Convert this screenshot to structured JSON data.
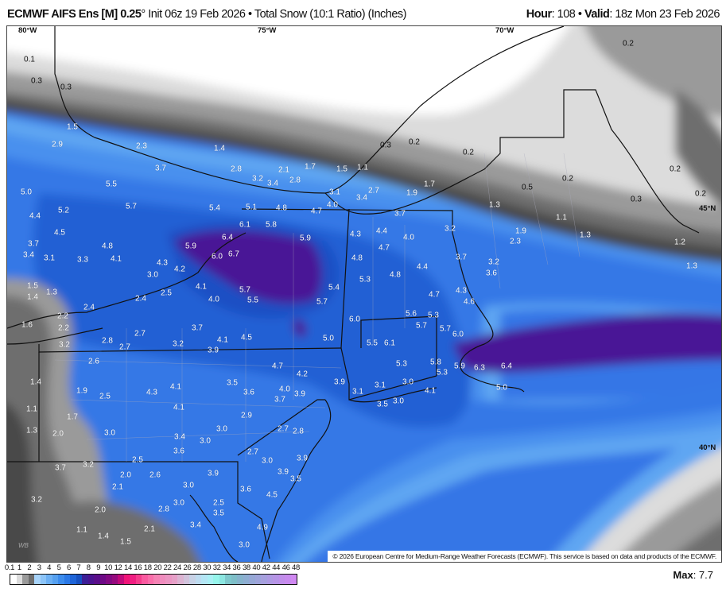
{
  "header": {
    "model": "ECMWF AIFS Ens [M] 0.25",
    "degree": "°",
    "init": " Init 06z 19 Feb 2026 • Total Snow (10:1 Ratio) (Inches)",
    "hour_label": "Hour",
    "hour_value": ": 108 • ",
    "valid_label": "Valid",
    "valid_value": ": 18z Mon 23 Feb 2026"
  },
  "map": {
    "coords": {
      "lon80": "80°W",
      "lon75": "75°W",
      "lon70": "70°W",
      "lat45": "45°N",
      "lat40": "40°N"
    },
    "copyright": "© 2026 European Centre for Medium-Range Weather Forecasts (ECMWF). This service is based on data and products of the ECMWF.",
    "logo_text": "WEATHERBELL",
    "snow_labels": [
      "0.1",
      "0.3",
      "0.3",
      "1.5",
      "2.9",
      "2.3",
      "1.4",
      "3.7",
      "2.8",
      "3.2",
      "3.4",
      "2.1",
      "1.7",
      "2.8",
      "1.5",
      "1.1",
      "0.3",
      "0.2",
      "0.2",
      "0.2",
      "0.2",
      "0.2",
      "0.3",
      "0.2",
      "0.5",
      "1.9",
      "1.7",
      "2.7",
      "3.1",
      "3.4",
      "5.0",
      "5.5",
      "5.2",
      "5.7",
      "4.4",
      "4.5",
      "5.4",
      "5.1",
      "4.8",
      "4.7",
      "4.0",
      "1.3",
      "1.1",
      "1.9",
      "2.3",
      "1.3",
      "1.2",
      "1.3",
      "3.7",
      "3.4",
      "3.1",
      "4.8",
      "4.1",
      "3.3",
      "6.1",
      "5.8",
      "6.4",
      "5.9",
      "6.0",
      "6.7",
      "5.9",
      "4.3",
      "4.4",
      "3.7",
      "4.0",
      "4.7",
      "4.8",
      "3.2",
      "3.7",
      "3.2",
      "3.6",
      "4.4",
      "4.2",
      "4.3",
      "3.0",
      "5.3",
      "4.8",
      "4.1",
      "5.4",
      "4.7",
      "4.3",
      "4.6",
      "1.5",
      "1.4",
      "1.3",
      "2.4",
      "2.4",
      "2.5",
      "4.0",
      "5.7",
      "5.5",
      "5.7",
      "5.6",
      "5.3",
      "2.2",
      "1.6",
      "2.2",
      "3.7",
      "6.0",
      "5.7",
      "5.7",
      "6.0",
      "3.2",
      "2.8",
      "2.7",
      "2.7",
      "3.2",
      "3.9",
      "4.1",
      "4.5",
      "5.0",
      "5.5",
      "6.1",
      "2.6",
      "4.7",
      "4.2",
      "5.3",
      "5.8",
      "5.3",
      "5.9",
      "6.3",
      "6.4",
      "3.9",
      "3.1",
      "1.4",
      "1.9",
      "2.5",
      "4.3",
      "4.1",
      "3.5",
      "3.6",
      "4.0",
      "3.9",
      "3.7",
      "3.1",
      "3.0",
      "3.5",
      "3.0",
      "4.1",
      "5.0",
      "1.1",
      "1.7",
      "4.1",
      "2.9",
      "1.3",
      "2.0",
      "3.0",
      "3.4",
      "3.0",
      "3.0",
      "2.7",
      "2.8",
      "3.6",
      "2.7",
      "3.0",
      "3.9",
      "2.5",
      "3.7",
      "3.2",
      "2.0",
      "2.6",
      "3.9",
      "3.0",
      "3.9",
      "3.5",
      "2.1",
      "3.6",
      "4.5",
      "3.2",
      "3.0",
      "2.8",
      "2.5",
      "3.5",
      "2.0",
      "1.1",
      "2.1",
      "3.4",
      "4.9",
      "1.4",
      "1.5",
      "3.0"
    ]
  },
  "colorbar": {
    "ticks": [
      "0.1",
      "1",
      "2",
      "3",
      "4",
      "5",
      "6",
      "7",
      "8",
      "9",
      "10",
      "12",
      "14",
      "16",
      "18",
      "20",
      "22",
      "24",
      "26",
      "28",
      "30",
      "32",
      "34",
      "36",
      "38",
      "40",
      "42",
      "44",
      "46",
      "48"
    ],
    "colors": [
      "#ffffff",
      "#dcdcdc",
      "#9a9a9a",
      "#6e6e6e",
      "#a8d4fa",
      "#8cc4f8",
      "#6cb0f4",
      "#55a0f0",
      "#3c8ced",
      "#2a78e6",
      "#1e64d8",
      "#1650c0",
      "#3c1e96",
      "#4a1490",
      "#5a0e8a",
      "#6e0a86",
      "#820a82",
      "#960a7e",
      "#c00a7a",
      "#f01478",
      "#f01e82",
      "#f53c8c",
      "#fa5aa0",
      "#fa6eaa",
      "#f582b4",
      "#f08cbe",
      "#eb96c3",
      "#e6a0c8",
      "#dcb4d2",
      "#d2c3dc",
      "#c8d2e6",
      "#bedcf0",
      "#b4e6f5",
      "#aaf0f5",
      "#96f5eb",
      "#8ce6e1",
      "#7ec8cc",
      "#7ebec8",
      "#86b4cc",
      "#8eaed2",
      "#96a8d6",
      "#9ea4da",
      "#a6a0de",
      "#ae9ae2",
      "#b694e6",
      "#c08eea",
      "#c88aee",
      "#d088f2"
    ],
    "max_label": "Max",
    "max_value": ": 7.7"
  }
}
